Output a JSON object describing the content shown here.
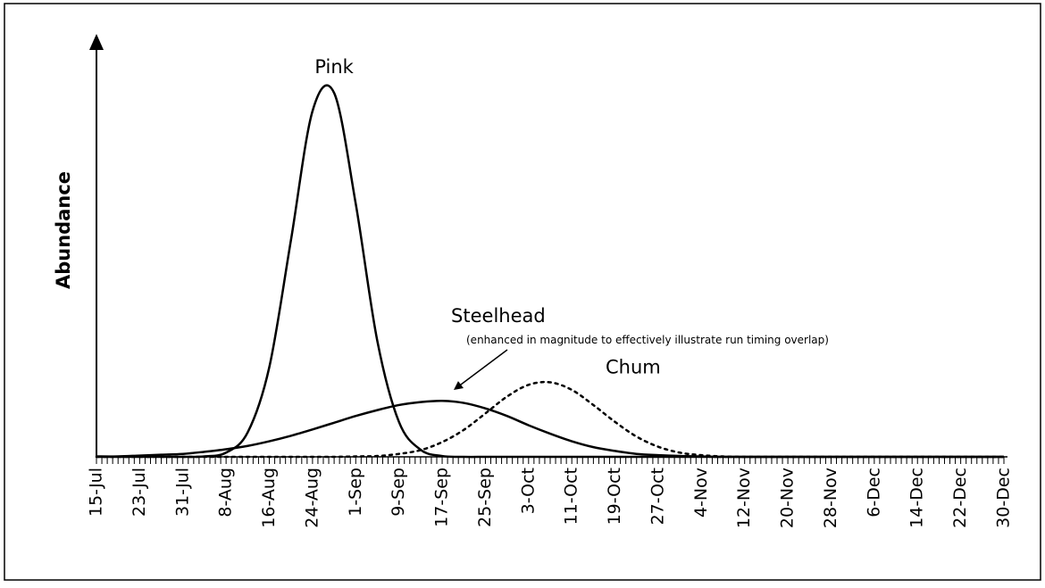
{
  "chart_data": {
    "type": "line",
    "y_label": "Abundance",
    "annotation": "(enhanced  in magnitude to effectively illustrate run timing overlap)",
    "categories": [
      "15-Jul",
      null,
      "23-Jul",
      null,
      "31-Jul",
      null,
      "8-Aug",
      null,
      "16-Aug",
      null,
      "24-Aug",
      null,
      "1-Sep",
      null,
      "9-Sep",
      null,
      "17-Sep",
      null,
      "25-Sep",
      null,
      "3-Oct",
      null,
      "11-Oct",
      null,
      "19-Oct",
      null,
      "27-Oct",
      null,
      "4-Nov",
      null,
      "12-Nov",
      null,
      "20-Nov",
      null,
      "28-Nov",
      null,
      "6-Dec",
      null,
      "14-Dec",
      null,
      "22-Dec",
      null,
      "30-Dec"
    ],
    "ylim": [
      0,
      100
    ],
    "series": [
      {
        "name": "Pink",
        "color": "#000000",
        "line_style": "solid",
        "values": [
          0,
          0,
          0,
          0,
          0,
          0.1,
          1.0,
          5.8,
          21.3,
          51.4,
          82.1,
          86.4,
          60.1,
          27.5,
          8.3,
          1.7,
          0.2,
          0,
          0,
          0,
          0,
          0,
          0,
          0,
          0,
          0,
          0,
          0,
          0,
          0,
          0,
          0,
          0,
          0,
          0,
          0,
          0,
          0,
          0,
          0,
          0,
          0,
          0
        ]
      },
      {
        "name": "Steelhead",
        "color": "#000000",
        "line_style": "solid",
        "values": [
          0.1,
          0.1,
          0.3,
          0.5,
          0.7,
          1.2,
          1.8,
          2.6,
          3.7,
          5.0,
          6.5,
          8.1,
          9.7,
          11.1,
          12.3,
          13.0,
          13.3,
          12.8,
          11.5,
          9.7,
          7.5,
          5.5,
          3.7,
          2.3,
          1.4,
          0.7,
          0.4,
          0.2,
          0.1,
          0,
          0,
          0,
          0,
          0,
          0,
          0,
          0,
          0,
          0,
          0,
          0,
          0,
          0
        ]
      },
      {
        "name": "Chum",
        "color": "#000000",
        "line_style": "dotted",
        "values": [
          0,
          0,
          0,
          0,
          0,
          0,
          0,
          0,
          0,
          0,
          0,
          0,
          0.1,
          0.2,
          0.7,
          1.6,
          3.5,
          6.4,
          10.3,
          14.3,
          17.1,
          17.7,
          15.9,
          12.3,
          8.3,
          4.8,
          2.4,
          1.0,
          0.4,
          0.1,
          0,
          0,
          0,
          0,
          0,
          0,
          0,
          0,
          0,
          0,
          0,
          0,
          0
        ]
      }
    ]
  }
}
